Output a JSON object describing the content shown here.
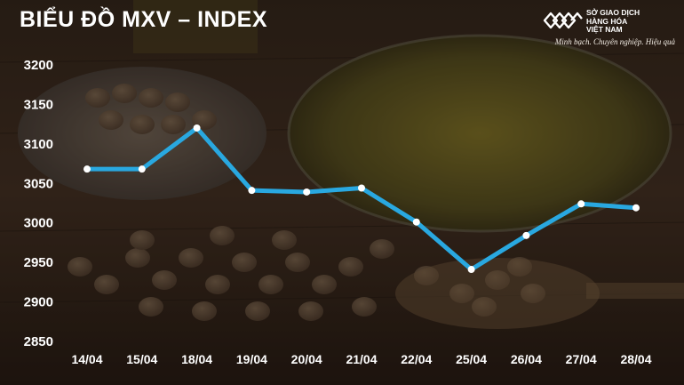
{
  "header": {
    "title": "BIỂU ĐỒ MXV – INDEX",
    "brand_lines": [
      "SỞ GIAO DỊCH",
      "HÀNG HÓA",
      "VIỆT NAM"
    ],
    "slogan": "Minh bạch. Chuyên nghiệp. Hiệu quả"
  },
  "chart_data": {
    "type": "line",
    "title": "BIỂU ĐỒ MXV – INDEX",
    "xlabel": "",
    "ylabel": "",
    "categories": [
      "14/04",
      "15/04",
      "18/04",
      "19/04",
      "20/04",
      "21/04",
      "22/04",
      "25/04",
      "26/04",
      "27/04",
      "28/04"
    ],
    "series": [
      {
        "values": [
          3067,
          3067,
          3119,
          3040,
          3038,
          3043,
          3000,
          2940,
          2983,
          3023,
          3018
        ]
      }
    ],
    "yticks": [
      2850,
      2900,
      2950,
      3000,
      3050,
      3100,
      3150,
      3200
    ],
    "ylim": [
      2850,
      3200
    ],
    "grid": false,
    "line_color": "#29a8e0",
    "marker_color": "#ffffff",
    "label_color": "#ffffff"
  }
}
